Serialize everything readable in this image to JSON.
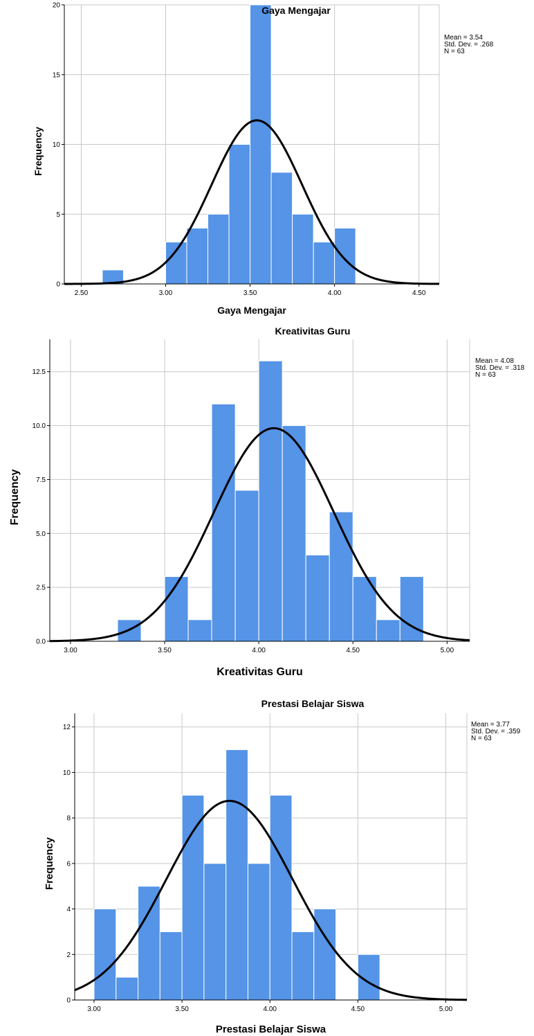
{
  "chart_data": [
    {
      "type": "bar",
      "title": "Gaya Mengajar",
      "xlabel": "Gaya Mengajar",
      "ylabel": "Frequency",
      "xlim": [
        2.4,
        4.62
      ],
      "ylim": [
        0,
        20
      ],
      "xticks": [
        2.5,
        3.0,
        3.5,
        4.0,
        4.5
      ],
      "xtick_labels": [
        "2.50",
        "3.00",
        "3.50",
        "4.00",
        "4.50"
      ],
      "yticks": [
        0,
        5,
        10,
        15,
        20
      ],
      "ytick_labels": [
        "0",
        "5",
        "10",
        "15",
        "20"
      ],
      "bin_width": 0.125,
      "bins_start": [
        2.625,
        2.75,
        2.875,
        3.0,
        3.125,
        3.25,
        3.375,
        3.5,
        3.625,
        3.75,
        3.875,
        4.0
      ],
      "values": [
        1,
        0,
        0,
        3,
        4,
        5,
        10,
        20,
        8,
        5,
        3,
        4
      ],
      "normal_curve": {
        "mean": 3.54,
        "sd": 0.268,
        "n": 63
      },
      "stats": {
        "mean": "Mean = 3.54",
        "sd": "Std. Dev. = .268",
        "n": "N = 63"
      },
      "grid": true,
      "legend": "right"
    },
    {
      "type": "bar",
      "title": "Kreativitas Guru",
      "xlabel": "Kreativitas Guru",
      "ylabel": "Frequency",
      "xlim": [
        2.89,
        5.12
      ],
      "ylim": [
        0,
        14
      ],
      "xticks": [
        3.0,
        3.5,
        4.0,
        4.5,
        5.0
      ],
      "xtick_labels": [
        "3.00",
        "3.50",
        "4.00",
        "4.50",
        "5.00"
      ],
      "yticks": [
        0,
        2.5,
        5,
        7.5,
        10,
        12.5
      ],
      "ytick_labels": [
        "0.0",
        "2.5",
        "5.0",
        "7.5",
        "10.0",
        "12.5"
      ],
      "bin_width": 0.125,
      "bins_start": [
        3.25,
        3.375,
        3.5,
        3.625,
        3.75,
        3.875,
        4.0,
        4.125,
        4.25,
        4.375,
        4.5,
        4.625,
        4.75
      ],
      "values": [
        1,
        0,
        3,
        1,
        11,
        7,
        13,
        10,
        4,
        6,
        3,
        1,
        3
      ],
      "normal_curve": {
        "mean": 4.08,
        "sd": 0.318,
        "n": 63
      },
      "stats": {
        "mean": "Mean = 4.08",
        "sd": "Std. Dev. = .318",
        "n": "N = 63"
      },
      "grid": true,
      "legend": "right"
    },
    {
      "type": "bar",
      "title": "Prestasi Belajar Siswa",
      "xlabel": "Prestasi Belajar Siswa",
      "ylabel": "Frequency",
      "xlim": [
        2.89,
        5.12
      ],
      "ylim": [
        0,
        12.6
      ],
      "xticks": [
        3.0,
        3.5,
        4.0,
        4.5,
        5.0
      ],
      "xtick_labels": [
        "3.00",
        "3.50",
        "4.00",
        "4.50",
        "5.00"
      ],
      "yticks": [
        0,
        2,
        4,
        6,
        8,
        10,
        12
      ],
      "ytick_labels": [
        "0",
        "2",
        "4",
        "6",
        "8",
        "10",
        "12"
      ],
      "bin_width": 0.125,
      "bins_start": [
        3.0,
        3.125,
        3.25,
        3.375,
        3.5,
        3.625,
        3.75,
        3.875,
        4.0,
        4.125,
        4.25,
        4.375,
        4.5
      ],
      "values": [
        4,
        1,
        5,
        3,
        9,
        6,
        11,
        6,
        9,
        3,
        4,
        0,
        2
      ],
      "normal_curve": {
        "mean": 3.77,
        "sd": 0.359,
        "n": 63
      },
      "stats": {
        "mean": "Mean = 3.77",
        "sd": "Std. Dev. = .359",
        "n": "N = 63"
      },
      "grid": true,
      "legend": "right"
    }
  ]
}
